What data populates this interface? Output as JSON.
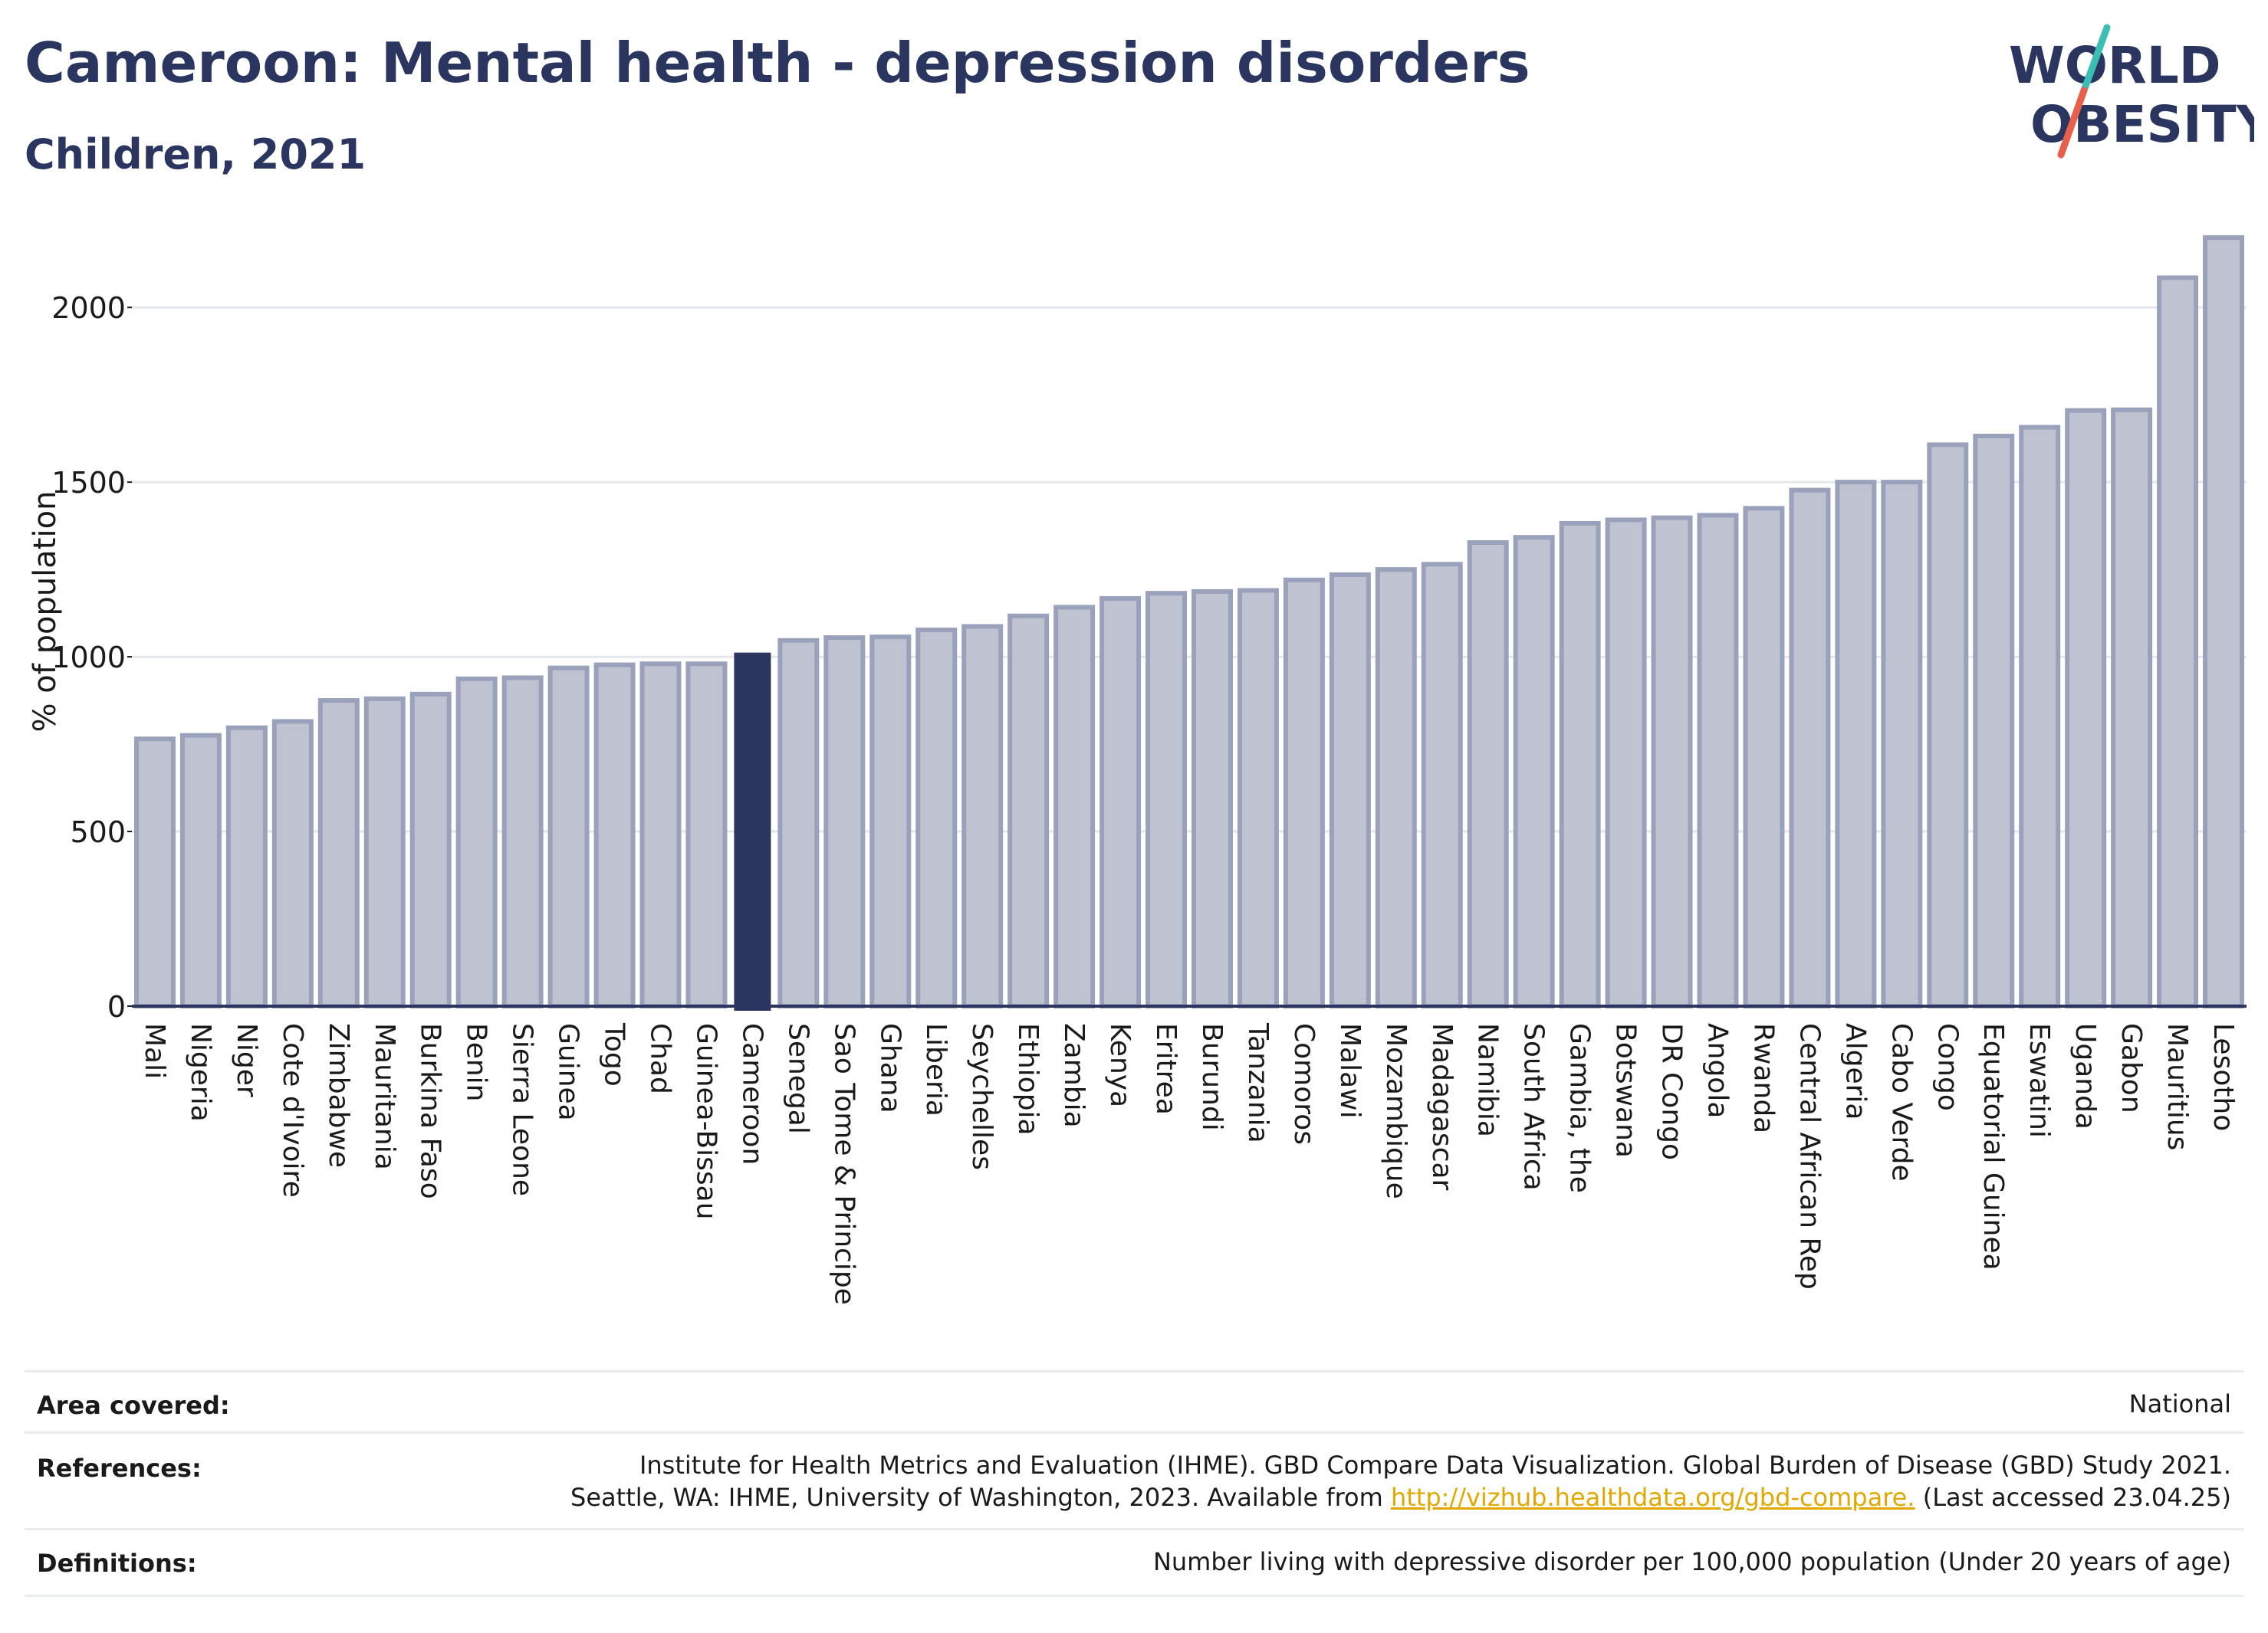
{
  "header": {
    "title": "Cameroon: Mental health - depression disorders",
    "subtitle": "Children, 2021"
  },
  "logo": {
    "line1": "WORLD",
    "line2": "OBESITY",
    "slash_color_top": "#3bbfb5",
    "slash_color_bottom": "#e8604c"
  },
  "colors": {
    "highlight": "#2a3560",
    "bar_fill": "#bfc3d1",
    "bar_stroke": "#9aa1ba",
    "grid": "#e3e6ea",
    "axis": "#2a3560"
  },
  "chart_data": {
    "type": "bar",
    "ylabel": "% of population",
    "xlabel": "",
    "ylim": [
      0,
      2200
    ],
    "yticks": [
      0,
      500,
      1000,
      1500,
      2000
    ],
    "grid": true,
    "highlight": "Cameroon",
    "categories": [
      "Mali",
      "Nigeria",
      "Niger",
      "Cote d'Ivoire",
      "Zimbabwe",
      "Mauritania",
      "Burkina Faso",
      "Benin",
      "Sierra Leone",
      "Guinea",
      "Togo",
      "Chad",
      "Guinea-Bissau",
      "Cameroon",
      "Senegal",
      "Sao Tome & Principe",
      "Ghana",
      "Liberia",
      "Seychelles",
      "Ethiopia",
      "Zambia",
      "Kenya",
      "Eritrea",
      "Burundi",
      "Tanzania",
      "Comoros",
      "Malawi",
      "Mozambique",
      "Madagascar",
      "Namibia",
      "South Africa",
      "Gambia, the",
      "Botswana",
      "DR Congo",
      "Angola",
      "Rwanda",
      "Central African Rep",
      "Algeria",
      "Cabo Verde",
      "Congo",
      "Equatorial Guinea",
      "Eswatini",
      "Uganda",
      "Gabon",
      "Mauritius",
      "Lesotho"
    ],
    "values": [
      765,
      775,
      797,
      815,
      875,
      880,
      893,
      937,
      940,
      968,
      977,
      980,
      980,
      1012,
      1047,
      1055,
      1057,
      1077,
      1087,
      1117,
      1142,
      1167,
      1182,
      1187,
      1190,
      1220,
      1235,
      1250,
      1265,
      1327,
      1342,
      1382,
      1392,
      1398,
      1405,
      1425,
      1477,
      1500,
      1500,
      1607,
      1632,
      1657,
      1705,
      1707,
      2085,
      2200
    ]
  },
  "footer": {
    "area_label": "Area covered:",
    "area_value": "National",
    "references_label": "References:",
    "references_line1": "Institute for Health Metrics and Evaluation (IHME). GBD Compare Data Visualization. Global Burden of Disease (GBD) Study 2021.",
    "references_line2_pre": "Seattle, WA: IHME, University of Washington, 2023. Available from ",
    "references_link": "http://vizhub.healthdata.org/gbd-compare.",
    "references_line2_post": " (Last accessed 23.04.25)",
    "definitions_label": "Definitions:",
    "definitions_value": "Number living with depressive disorder per 100,000 population (Under 20 years of age)"
  }
}
